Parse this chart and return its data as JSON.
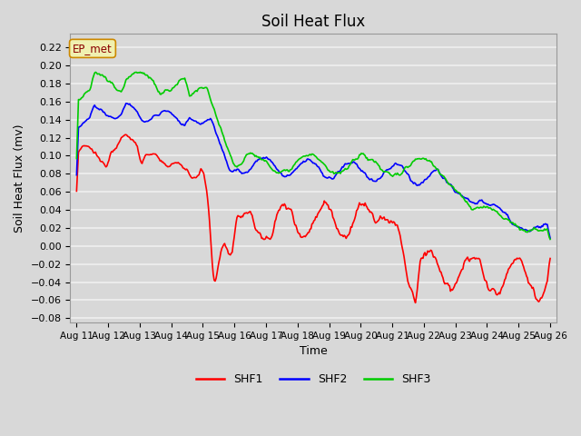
{
  "title": "Soil Heat Flux",
  "ylabel": "Soil Heat Flux (mv)",
  "xlabel": "Time",
  "ylim": [
    -0.085,
    0.235
  ],
  "yticks": [
    -0.08,
    -0.06,
    -0.04,
    -0.02,
    0.0,
    0.02,
    0.04,
    0.06,
    0.08,
    0.1,
    0.12,
    0.14,
    0.16,
    0.18,
    0.2,
    0.22
  ],
  "date_labels": [
    "Aug 11",
    "Aug 12",
    "Aug 13",
    "Aug 14",
    "Aug 15",
    "Aug 16",
    "Aug 17",
    "Aug 18",
    "Aug 19",
    "Aug 20",
    "Aug 21",
    "Aug 22",
    "Aug 23",
    "Aug 24",
    "Aug 25",
    "Aug 26"
  ],
  "colors": {
    "SHF1": "#ff0000",
    "SHF2": "#0000ff",
    "SHF3": "#00cc00"
  },
  "annotation": "EP_met",
  "background_color": "#d8d8d8",
  "grid_color": "#f0f0f0",
  "title_fontsize": 12,
  "label_fontsize": 9,
  "tick_fontsize": 8
}
